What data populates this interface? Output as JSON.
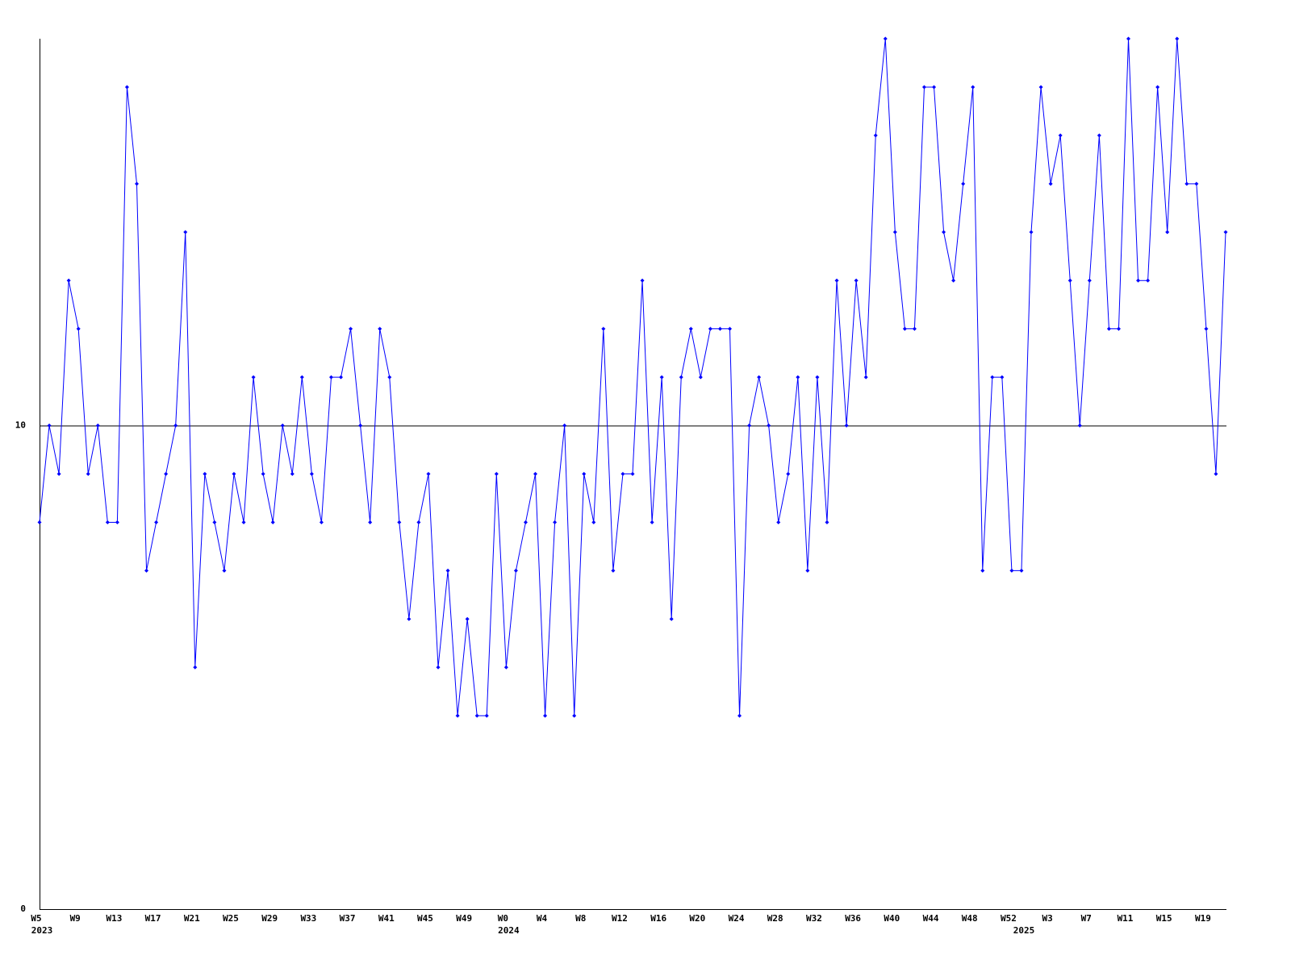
{
  "chart_data": {
    "type": "line",
    "categories": [
      "W5",
      null,
      null,
      null,
      "W9",
      null,
      null,
      null,
      "W13",
      null,
      null,
      null,
      "W17",
      null,
      null,
      null,
      "W21",
      null,
      null,
      null,
      "W25",
      null,
      null,
      null,
      "W29",
      null,
      null,
      null,
      "W33",
      null,
      null,
      null,
      "W37",
      null,
      null,
      null,
      "W41",
      null,
      null,
      null,
      "W45",
      null,
      null,
      null,
      "W49",
      null,
      null,
      null,
      "W0",
      null,
      null,
      null,
      "W4",
      null,
      null,
      null,
      "W8",
      null,
      null,
      null,
      "W12",
      null,
      null,
      null,
      "W16",
      null,
      null,
      null,
      "W20",
      null,
      null,
      null,
      "W24",
      null,
      null,
      null,
      "W28",
      null,
      null,
      null,
      "W32",
      null,
      null,
      null,
      "W36",
      null,
      null,
      null,
      "W40",
      null,
      null,
      null,
      "W44",
      null,
      null,
      null,
      "W48",
      null,
      null,
      null,
      "W52",
      null,
      null,
      null,
      "W3",
      null,
      null,
      null,
      "W7",
      null,
      null,
      null,
      "W11",
      null,
      null,
      null,
      "W15",
      null,
      null,
      null,
      "W19",
      null,
      null
    ],
    "category_years": [
      "2023",
      null,
      null,
      null,
      null,
      null,
      null,
      null,
      null,
      null,
      null,
      null,
      null,
      null,
      null,
      null,
      null,
      null,
      null,
      null,
      null,
      null,
      null,
      null,
      null,
      null,
      null,
      null,
      null,
      null,
      null,
      null,
      null,
      null,
      null,
      null,
      null,
      null,
      null,
      null,
      null,
      null,
      null,
      null,
      null,
      null,
      null,
      null,
      "2024",
      null,
      null,
      null,
      null,
      null,
      null,
      null,
      null,
      null,
      null,
      null,
      null,
      null,
      null,
      null,
      null,
      null,
      null,
      null,
      null,
      null,
      null,
      null,
      null,
      null,
      null,
      null,
      null,
      null,
      null,
      null,
      null,
      null,
      null,
      null,
      null,
      null,
      null,
      null,
      null,
      null,
      null,
      null,
      null,
      null,
      null,
      null,
      null,
      null,
      null,
      null,
      null,
      "2025",
      null,
      null,
      null,
      null,
      null,
      null,
      null,
      null,
      null,
      null,
      null,
      null,
      null,
      null,
      null,
      null,
      null,
      null,
      null,
      null,
      null
    ],
    "series": [
      {
        "color": "#0000ff",
        "values": [
          8,
          10,
          9,
          13,
          12,
          9,
          10,
          8,
          8,
          17,
          15,
          7,
          8,
          9,
          10,
          14,
          5,
          9,
          8,
          7,
          9,
          8,
          11,
          9,
          8,
          10,
          9,
          11,
          9,
          8,
          11,
          11,
          12,
          10,
          8,
          12,
          11,
          8,
          6,
          8,
          9,
          5,
          7,
          4,
          6,
          4,
          4,
          9,
          5,
          7,
          8,
          9,
          4,
          8,
          10,
          4,
          9,
          8,
          12,
          7,
          9,
          9,
          13,
          8,
          11,
          6,
          11,
          12,
          11,
          12,
          12,
          12,
          4,
          10,
          11,
          10,
          8,
          9,
          11,
          7,
          11,
          8,
          13,
          10,
          13,
          11,
          16,
          18,
          14,
          12,
          12,
          17,
          17,
          14,
          13,
          15,
          17,
          7,
          11,
          11,
          7,
          7,
          14,
          17,
          15,
          16,
          13,
          10,
          13,
          16,
          12,
          12,
          18,
          13,
          13,
          17,
          14,
          18,
          15,
          15,
          12,
          9,
          14
        ]
      }
    ],
    "ylim": [
      0,
      18
    ],
    "yticks": [
      0,
      10
    ],
    "grid": true
  }
}
